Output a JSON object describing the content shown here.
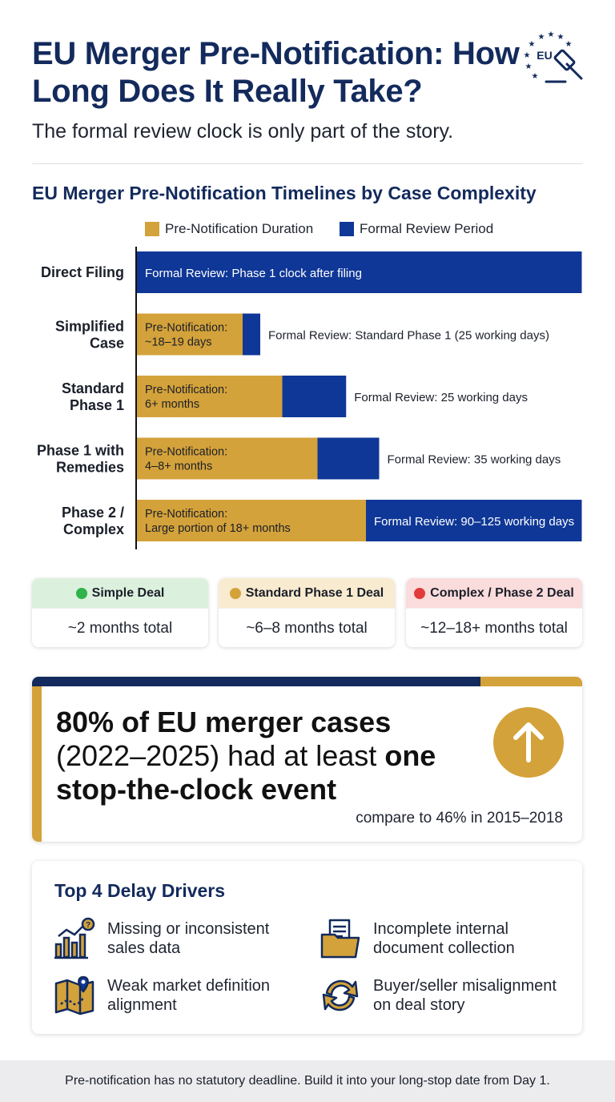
{
  "header": {
    "title": "EU Merger Pre-Notification: How Long Does It Really Take?",
    "subtitle": "The formal review clock is only part of the story.",
    "badge_text": "EU",
    "badge_icon": "gavel-icon"
  },
  "chart_data": {
    "type": "bar",
    "orientation": "horizontal",
    "stacked": true,
    "title": "EU Merger Pre-Notification Timelines by Case Complexity",
    "legend": [
      "Pre-Notification Duration",
      "Formal Review Period"
    ],
    "legend_position": "top",
    "categories": [
      "Direct Filing",
      "Simplified Case",
      "Standard Phase 1",
      "Phase 1 with Remedies",
      "Phase 2 / Complex"
    ],
    "series": [
      {
        "name": "Pre-Notification Duration",
        "color": "#d4a23a",
        "values": [
          0,
          24,
          33,
          41,
          52
        ],
        "labels": [
          "",
          "Pre-Notification: ~18–19 days",
          "Pre-Notification: 6+ months",
          "Pre-Notification: 4–8+ months",
          "Pre-Notification: Large portion of 18+ months"
        ]
      },
      {
        "name": "Formal Review Period",
        "color": "#0f3797",
        "values": [
          101,
          4,
          14.5,
          14,
          49
        ],
        "labels": [
          "Formal Review: Phase 1 clock after filing",
          "Formal Review: Standard Phase 1 (25 working days)",
          "Formal Review: 25 working days",
          "Formal Review: 35 working days",
          "Formal Review: 90–125 working days"
        ]
      }
    ],
    "grid": false
  },
  "summary": [
    {
      "label": "Simple Deal",
      "value": "~2 months total",
      "dot_color": "#2fb34a",
      "bg": "#dcf1dd"
    },
    {
      "label": "Standard Phase 1 Deal",
      "value": "~6–8 months total",
      "dot_color": "#d4a23a",
      "bg": "#f8ebcf"
    },
    {
      "label": "Complex / Phase 2 Deal",
      "value": "~12–18+ months total",
      "dot_color": "#e23a3a",
      "bg": "#fbdcdc"
    }
  ],
  "stat": {
    "part1": "80% of EU merger cases",
    "part2": "(2022–2025) had at least",
    "part3": "one",
    "part4": "stop-the-clock event",
    "compare": "compare to 46% in 2015–2018",
    "icon": "arrow-up-icon"
  },
  "drivers": {
    "title": "Top 4 Delay Drivers",
    "items": [
      {
        "label": "Missing or inconsistent sales data",
        "icon": "chart-question-icon"
      },
      {
        "label": "Incomplete internal document collection",
        "icon": "folder-document-icon"
      },
      {
        "label": "Weak market definition alignment",
        "icon": "map-pin-icon"
      },
      {
        "label": "Buyer/seller misalignment on deal story",
        "icon": "refresh-arrows-icon"
      }
    ]
  },
  "footer": {
    "text": "Pre-notification has no statutory deadline. Build it into your long-stop date from Day 1."
  }
}
